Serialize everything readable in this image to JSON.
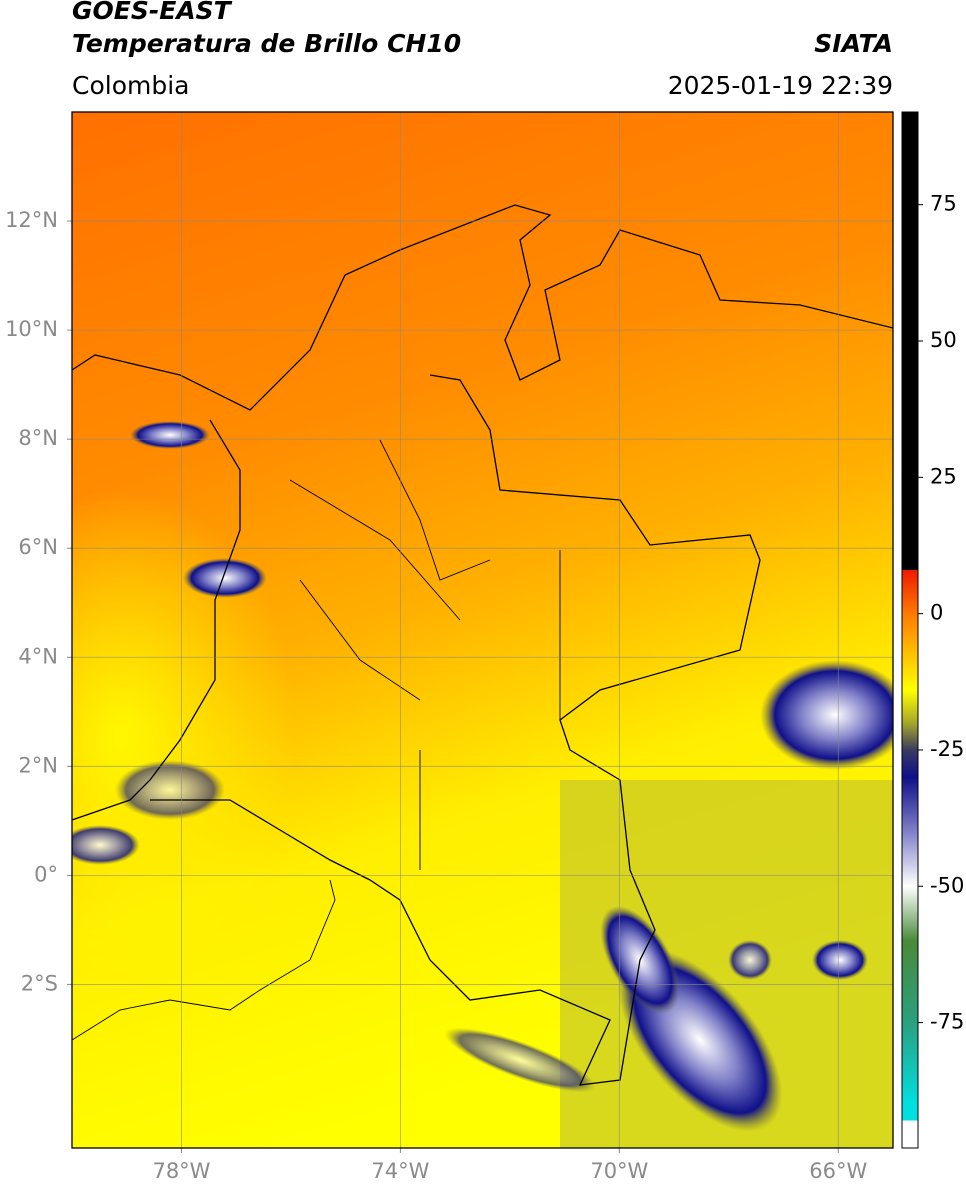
{
  "header": {
    "satellite": "GOES-EAST",
    "product": "Temperatura de Brillo CH10",
    "source": "SIATA",
    "region": "Colombia",
    "datetime": "2025-01-19 22:39"
  },
  "map": {
    "xlim": [
      -80,
      -65
    ],
    "ylim": [
      -5,
      14
    ],
    "xticks": [
      {
        "value": -78,
        "label": "78°W"
      },
      {
        "value": -74,
        "label": "74°W"
      },
      {
        "value": -70,
        "label": "70°W"
      },
      {
        "value": -66,
        "label": "66°W"
      }
    ],
    "yticks": [
      {
        "value": 12,
        "label": "12°N"
      },
      {
        "value": 10,
        "label": "10°N"
      },
      {
        "value": 8,
        "label": "8°N"
      },
      {
        "value": 6,
        "label": "6°N"
      },
      {
        "value": 4,
        "label": "4°N"
      },
      {
        "value": 2,
        "label": "2°N"
      },
      {
        "value": 0,
        "label": "0°"
      },
      {
        "value": -2,
        "label": "2°S"
      }
    ],
    "grid": true
  },
  "colorbar": {
    "ylim": [
      -98,
      92
    ],
    "yticks": [
      75,
      50,
      25,
      0,
      -25,
      -50,
      -75
    ],
    "colors": [
      {
        "value": 92,
        "color": "#000000"
      },
      {
        "value": 8,
        "color": "#000000"
      },
      {
        "value": 8,
        "color": "#ee1a00"
      },
      {
        "value": 0,
        "color": "#ff7a00"
      },
      {
        "value": -14,
        "color": "#ffff00"
      },
      {
        "value": -20,
        "color": "#a7a72a"
      },
      {
        "value": -25,
        "color": "#3a3a60"
      },
      {
        "value": -30,
        "color": "#10108a"
      },
      {
        "value": -40,
        "color": "#8080c8"
      },
      {
        "value": -50,
        "color": "#ffffff"
      },
      {
        "value": -60,
        "color": "#4a8a3a"
      },
      {
        "value": -75,
        "color": "#2aa080"
      },
      {
        "value": -90,
        "color": "#00e0e0"
      },
      {
        "value": -93,
        "color": "#00e0e0"
      },
      {
        "value": -93,
        "color": "#ffffff"
      },
      {
        "value": -98,
        "color": "#ffffff"
      }
    ]
  }
}
